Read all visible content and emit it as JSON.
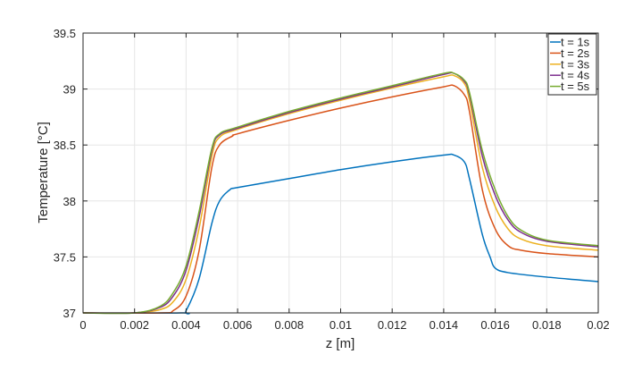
{
  "chart_data": {
    "type": "line",
    "title": "",
    "xlabel": "z [m]",
    "ylabel": "Temperature [°C]",
    "xlim": [
      0,
      0.02
    ],
    "ylim": [
      37,
      39.5
    ],
    "xticks": [
      0,
      0.002,
      0.004,
      0.006,
      0.008,
      0.01,
      0.012,
      0.014,
      0.016,
      0.018,
      0.02
    ],
    "xtick_labels": [
      "0",
      "0.002",
      "0.004",
      "0.006",
      "0.008",
      "0.01",
      "0.012",
      "0.014",
      "0.016",
      "0.018",
      "0.02"
    ],
    "yticks": [
      37,
      37.5,
      38,
      38.5,
      39,
      39.5
    ],
    "ytick_labels": [
      "37",
      "37.5",
      "38",
      "38.5",
      "39",
      "39.5"
    ],
    "grid": true,
    "legend_position": "top-right",
    "series": [
      {
        "name": "t = 1s",
        "color": "#0072BD",
        "x": [
          0,
          0.0038,
          0.004,
          0.0045,
          0.005,
          0.0053,
          0.0057,
          0.006,
          0.008,
          0.01,
          0.012,
          0.014,
          0.0144,
          0.0148,
          0.015,
          0.0155,
          0.0158,
          0.016,
          0.0165,
          0.018,
          0.02
        ],
        "y": [
          37,
          37,
          37.02,
          37.3,
          37.8,
          38.0,
          38.1,
          38.12,
          38.2,
          38.28,
          38.35,
          38.41,
          38.41,
          38.35,
          38.2,
          37.7,
          37.5,
          37.4,
          37.36,
          37.32,
          37.28
        ]
      },
      {
        "name": "t = 2s",
        "color": "#D95319",
        "x": [
          0,
          0.003,
          0.0035,
          0.004,
          0.0045,
          0.005,
          0.0053,
          0.0058,
          0.006,
          0.008,
          0.01,
          0.012,
          0.014,
          0.0144,
          0.0148,
          0.015,
          0.0155,
          0.016,
          0.0165,
          0.017,
          0.018,
          0.02
        ],
        "y": [
          37,
          37,
          37.02,
          37.15,
          37.55,
          38.3,
          38.5,
          38.58,
          38.6,
          38.72,
          38.83,
          38.93,
          39.02,
          39.03,
          38.95,
          38.8,
          38.1,
          37.75,
          37.6,
          37.56,
          37.53,
          37.5
        ]
      },
      {
        "name": "t = 3s",
        "color": "#EDB120",
        "x": [
          0,
          0.002,
          0.003,
          0.0035,
          0.004,
          0.0045,
          0.005,
          0.0053,
          0.006,
          0.008,
          0.01,
          0.012,
          0.014,
          0.0144,
          0.0148,
          0.015,
          0.0155,
          0.016,
          0.0165,
          0.017,
          0.018,
          0.02
        ],
        "y": [
          37,
          37,
          37.03,
          37.1,
          37.3,
          37.75,
          38.4,
          38.57,
          38.64,
          38.78,
          38.9,
          39.01,
          39.11,
          39.12,
          39.05,
          38.9,
          38.3,
          37.95,
          37.75,
          37.66,
          37.6,
          37.56
        ]
      },
      {
        "name": "t = 4s",
        "color": "#7E2F8E",
        "x": [
          0,
          0.002,
          0.003,
          0.0035,
          0.004,
          0.0045,
          0.005,
          0.0053,
          0.006,
          0.008,
          0.01,
          0.012,
          0.014,
          0.0144,
          0.0148,
          0.015,
          0.0155,
          0.016,
          0.0165,
          0.017,
          0.018,
          0.02
        ],
        "y": [
          37,
          37,
          37.05,
          37.15,
          37.38,
          37.85,
          38.45,
          38.59,
          38.65,
          38.79,
          38.91,
          39.02,
          39.13,
          39.14,
          39.07,
          38.95,
          38.4,
          38.05,
          37.83,
          37.72,
          37.64,
          37.59
        ]
      },
      {
        "name": "t = 5s",
        "color": "#77AC30",
        "x": [
          0,
          0.002,
          0.003,
          0.0035,
          0.004,
          0.0045,
          0.005,
          0.0053,
          0.006,
          0.008,
          0.01,
          0.012,
          0.014,
          0.0144,
          0.0148,
          0.015,
          0.0155,
          0.016,
          0.0165,
          0.017,
          0.018,
          0.02
        ],
        "y": [
          37,
          37,
          37.06,
          37.18,
          37.42,
          37.9,
          38.47,
          38.6,
          38.66,
          38.8,
          38.92,
          39.03,
          39.14,
          39.14,
          39.08,
          38.97,
          38.45,
          38.1,
          37.86,
          37.74,
          37.65,
          37.6
        ]
      }
    ]
  }
}
